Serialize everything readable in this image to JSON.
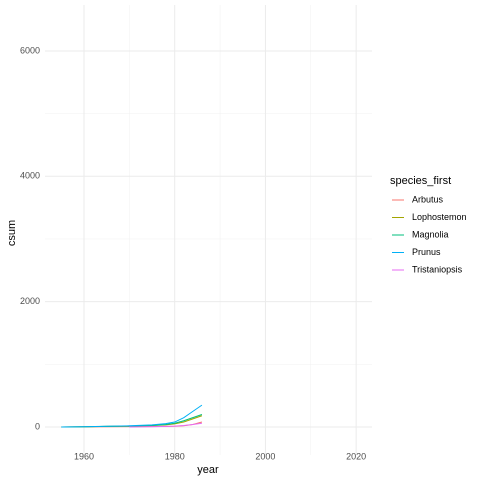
{
  "chart_data": {
    "type": "line",
    "x_label": "year",
    "y_label": "csum",
    "legend_title": "species_first",
    "x": [
      1955,
      1960,
      1965,
      1970,
      1975,
      1978,
      1980,
      1982,
      1984,
      1986
    ],
    "series": [
      {
        "name": "Arbutus",
        "color": "#F8766D",
        "values": [
          0,
          2,
          4,
          6,
          8,
          10,
          12,
          20,
          40,
          80
        ]
      },
      {
        "name": "Lophostemon",
        "color": "#A3A500",
        "values": [
          0,
          5,
          10,
          15,
          25,
          35,
          50,
          80,
          130,
          180
        ]
      },
      {
        "name": "Magnolia",
        "color": "#00BF7D",
        "values": [
          0,
          5,
          10,
          15,
          25,
          40,
          60,
          100,
          150,
          200
        ]
      },
      {
        "name": "Prunus",
        "color": "#00B0F6",
        "values": [
          0,
          5,
          12,
          20,
          35,
          55,
          80,
          150,
          250,
          350
        ]
      },
      {
        "name": "Tristaniopsis",
        "color": "#E76BF3",
        "values": [
          null,
          null,
          null,
          0,
          5,
          10,
          15,
          25,
          40,
          60
        ]
      }
    ],
    "xlim": [
      1951.4,
      2023.5
    ],
    "ylim": [
      -446,
      6733
    ],
    "xticks": [
      1960,
      1980,
      2000,
      2020
    ],
    "yticks": [
      0,
      2000,
      4000,
      6000
    ],
    "xminorticks": [
      1970,
      1990,
      2010
    ],
    "yminorticks": [
      1000,
      3000,
      5000
    ],
    "grid": true,
    "legend": "right"
  }
}
